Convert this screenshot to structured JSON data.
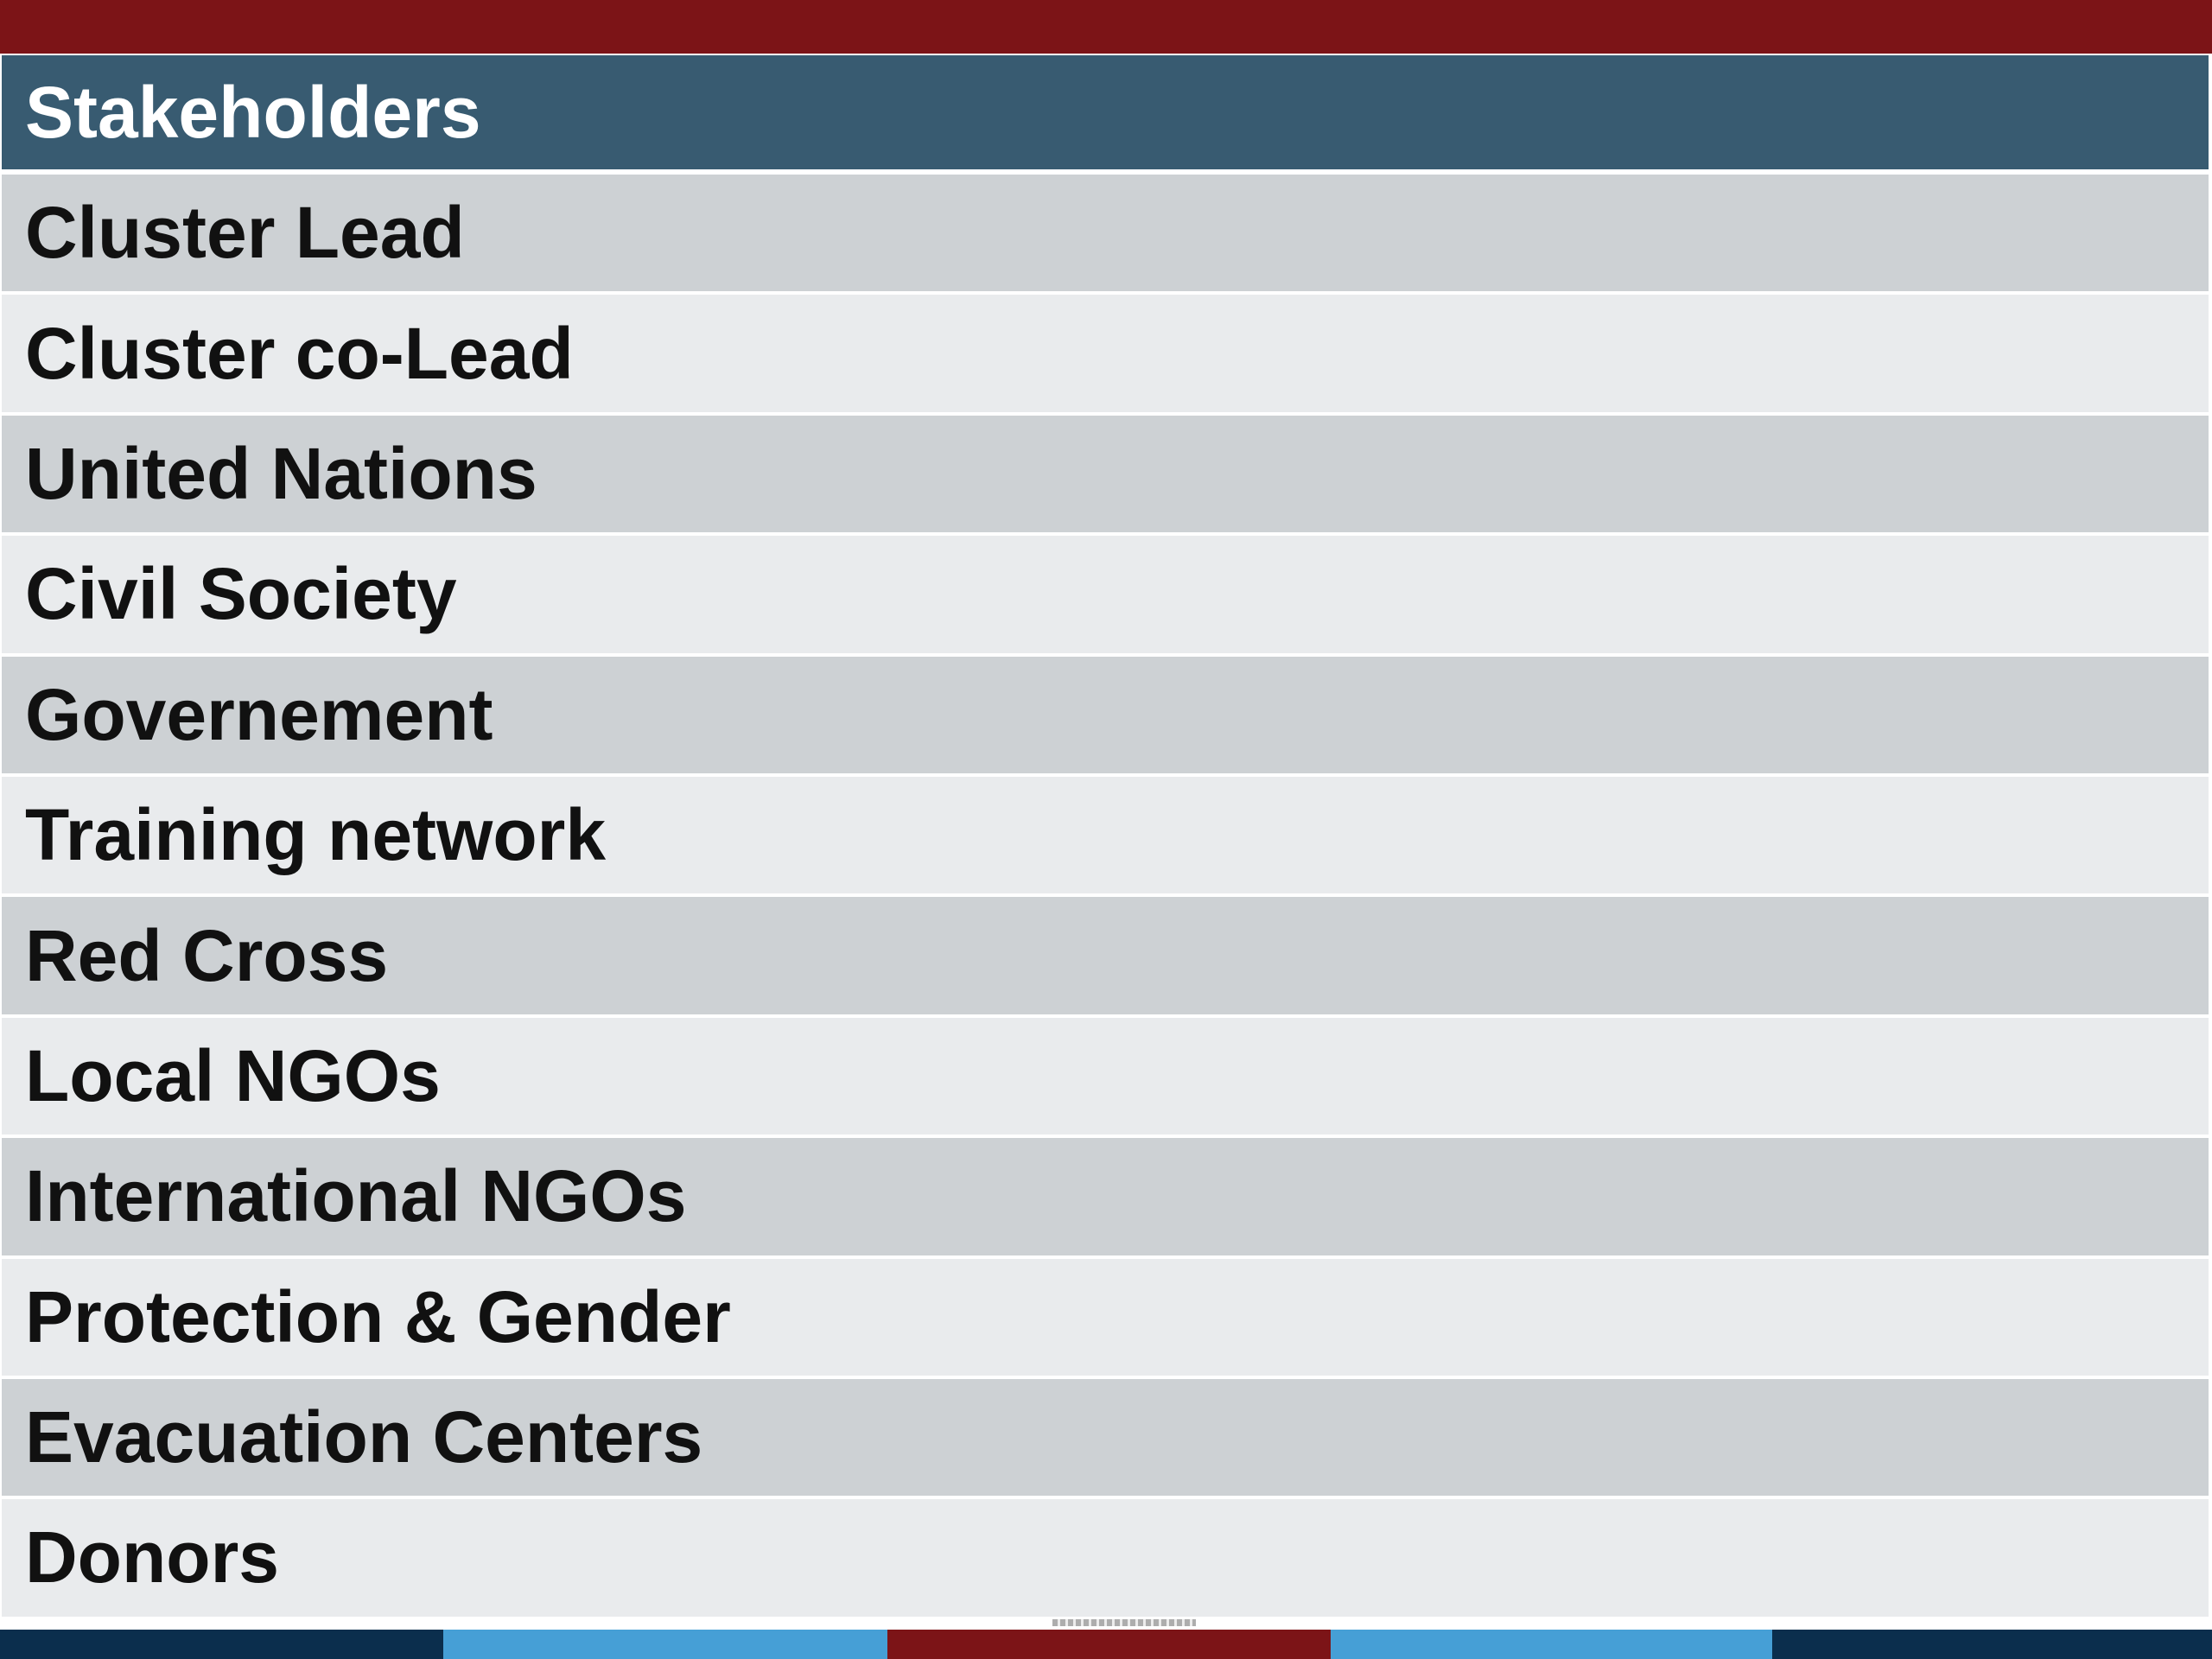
{
  "colors": {
    "top_bar": "#7c1417",
    "header": "#385b71",
    "row_dark": "#cdd1d4",
    "row_light": "#e9ebed",
    "bottom_bar": [
      "#0b2e4d",
      "#469fd6",
      "#7c1417",
      "#469fd6",
      "#0b2e4d"
    ]
  },
  "table": {
    "header": "Stakeholders",
    "rows": [
      "Cluster Lead",
      "Cluster co-Lead",
      "United Nations",
      "Civil Society",
      "Governement",
      "Training network",
      "Red Cross",
      "Local NGOs",
      "International NGOs",
      "Protection & Gender",
      "Evacuation Centers",
      "Donors"
    ]
  }
}
